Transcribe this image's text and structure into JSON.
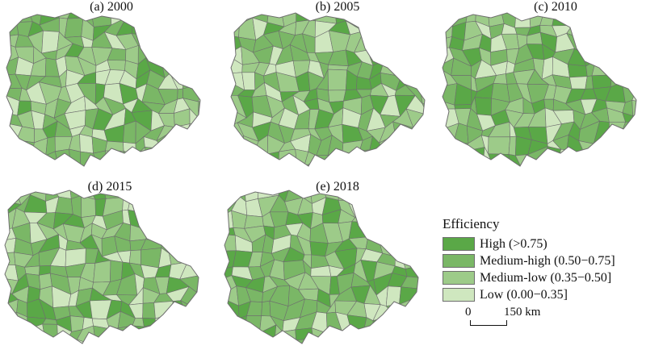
{
  "panels": [
    {
      "title": "(a) 2000"
    },
    {
      "title": "(b) 2005"
    },
    {
      "title": "(c) 2010"
    },
    {
      "title": "(d) 2015"
    },
    {
      "title": "(e) 2018"
    }
  ],
  "legend": {
    "title": "Efficiency",
    "items": [
      {
        "label": "High (>0.75)",
        "color": "#5aa847"
      },
      {
        "label": "Medium-high (0.50−0.75]",
        "color": "#7ab766"
      },
      {
        "label": "Medium-low (0.35−0.50]",
        "color": "#9dcb89"
      },
      {
        "label": "Low (0.00−0.35]",
        "color": "#cfe7bf"
      }
    ]
  },
  "scalebar": {
    "zero": "0",
    "distance": "150 km"
  },
  "border_color": "#6e6e6e"
}
